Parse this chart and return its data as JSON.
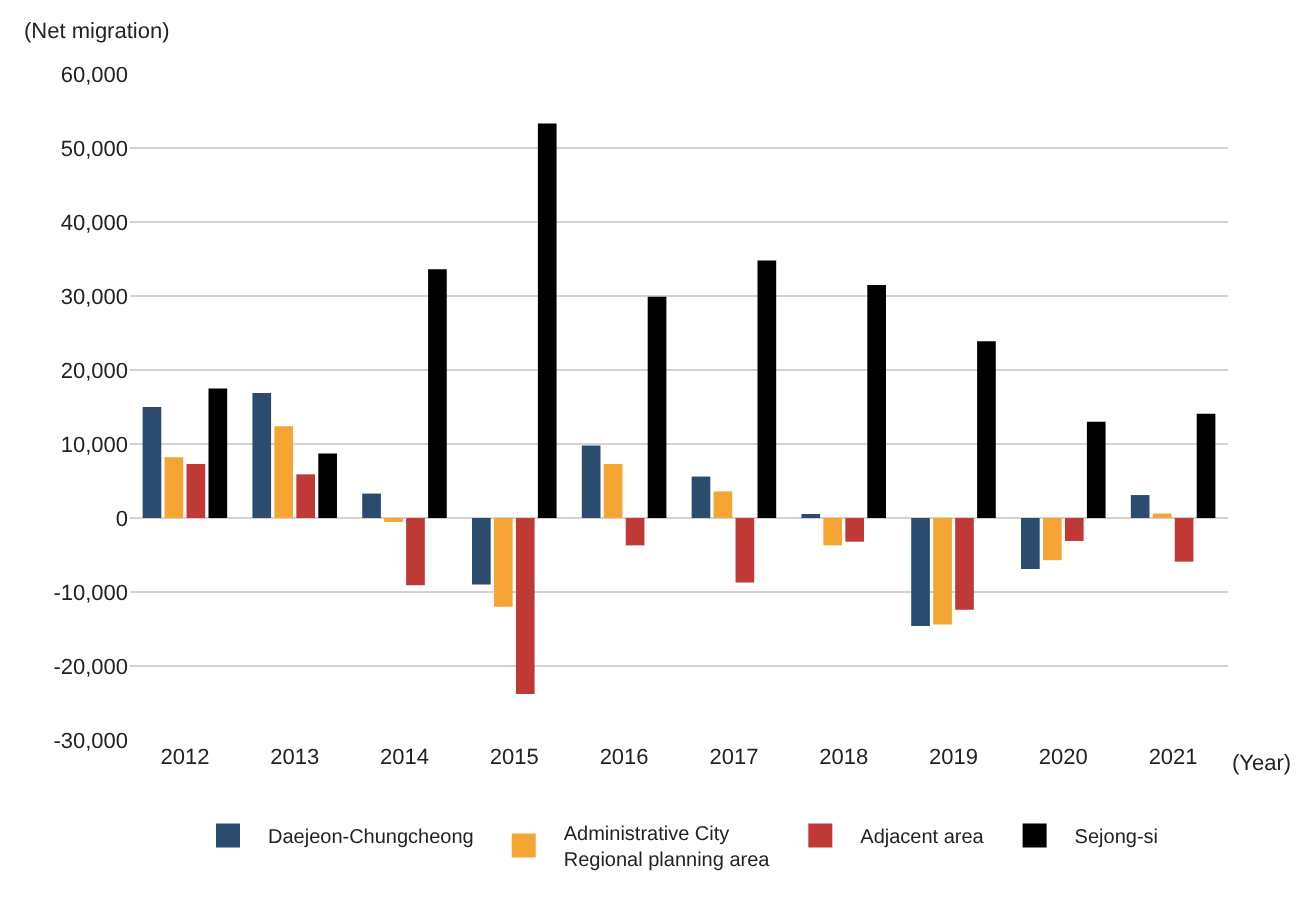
{
  "chart_data": {
    "type": "bar",
    "ylabel": "(Net migration)",
    "xlabel": "(Year)",
    "categories": [
      "2012",
      "2013",
      "2014",
      "2015",
      "2016",
      "2017",
      "2018",
      "2019",
      "2020",
      "2021"
    ],
    "series": [
      {
        "name": "Daejeon-Chungcheong",
        "color": "#2b4c6f",
        "values": [
          15000,
          16900,
          3300,
          -9000,
          9800,
          5600,
          500,
          -14600,
          -6900,
          3100
        ]
      },
      {
        "name": "Administrative City\nRegional planning area",
        "color": "#f5a533",
        "values": [
          8200,
          12400,
          -300,
          -12000,
          7300,
          3600,
          -3700,
          -14400,
          -5700,
          600
        ]
      },
      {
        "name": "Adjacent area",
        "color": "#bf3a37",
        "values": [
          7300,
          5900,
          -9100,
          -23800,
          -3700,
          -8700,
          -3200,
          -12400,
          -3100,
          -5900
        ]
      },
      {
        "name": "Sejong-si",
        "color": "#000000",
        "values": [
          17500,
          8700,
          33600,
          53300,
          29900,
          34800,
          31500,
          23900,
          13000,
          14100
        ]
      }
    ],
    "ylim": [
      -30000,
      60000
    ],
    "yticks": [
      {
        "value": -30000,
        "label": "-30,000"
      },
      {
        "value": -20000,
        "label": "-20,000"
      },
      {
        "value": -10000,
        "label": "-10,000"
      },
      0,
      {
        "value": 10000,
        "label": "10,000"
      },
      {
        "value": 20000,
        "label": "20,000"
      },
      {
        "value": 30000,
        "label": "30,000"
      },
      {
        "value": 40000,
        "label": "40,000"
      },
      {
        "value": 50000,
        "label": "50,000"
      },
      {
        "value": 60000,
        "label": "60,000"
      }
    ],
    "grid": "y",
    "legend": "bottom"
  }
}
